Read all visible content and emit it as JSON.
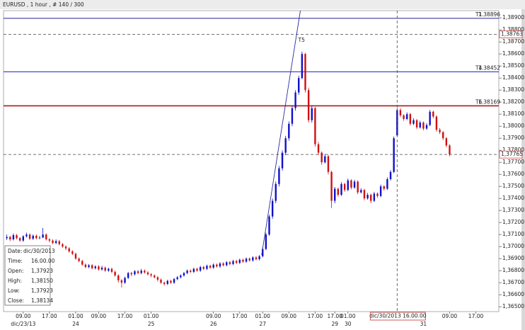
{
  "chart_data": {
    "type": "candlestick",
    "title": "EURUSD , 1 hour , # 140 / 300",
    "xlim": [
      -1,
      150
    ],
    "ylim": [
      1.3646,
      1.3896
    ],
    "yticks": [
      {
        "value": 1.365,
        "label": "1,36500"
      },
      {
        "value": 1.366,
        "label": "1,36600"
      },
      {
        "value": 1.367,
        "label": "1,36700"
      },
      {
        "value": 1.368,
        "label": "1,36800"
      },
      {
        "value": 1.369,
        "label": "1,36900"
      },
      {
        "value": 1.37,
        "label": "1,37000"
      },
      {
        "value": 1.371,
        "label": "1,37100"
      },
      {
        "value": 1.372,
        "label": "1,37200"
      },
      {
        "value": 1.373,
        "label": "1,37300"
      },
      {
        "value": 1.374,
        "label": "1,37400"
      },
      {
        "value": 1.375,
        "label": "1,37500"
      },
      {
        "value": 1.376,
        "label": "1,37600"
      },
      {
        "value": 1.377,
        "label": "1,37700"
      },
      {
        "value": 1.378,
        "label": "1,37800"
      },
      {
        "value": 1.379,
        "label": "1,37900"
      },
      {
        "value": 1.38,
        "label": "1,38000"
      },
      {
        "value": 1.381,
        "label": "1,38100"
      },
      {
        "value": 1.382,
        "label": "1,38200"
      },
      {
        "value": 1.383,
        "label": "1,38300"
      },
      {
        "value": 1.384,
        "label": "1,38400"
      },
      {
        "value": 1.385,
        "label": "1,38500"
      },
      {
        "value": 1.386,
        "label": "1,38600"
      },
      {
        "value": 1.387,
        "label": "1,38700"
      },
      {
        "value": 1.388,
        "label": "1,38800"
      },
      {
        "value": 1.389,
        "label": "1,38900"
      }
    ],
    "xticks": [
      {
        "value": 5,
        "label": "09.00"
      },
      {
        "value": 13,
        "label": "17.00"
      },
      {
        "value": 21,
        "label": "01.00"
      },
      {
        "value": 28,
        "label": "09.00"
      },
      {
        "value": 36,
        "label": "17.00"
      },
      {
        "value": 44,
        "label": "01.00"
      },
      {
        "value": 63,
        "label": "09.00"
      },
      {
        "value": 71,
        "label": "17.00"
      },
      {
        "value": 78,
        "label": "01.00"
      },
      {
        "value": 86,
        "label": "09.00"
      },
      {
        "value": 94,
        "label": "17.00"
      },
      {
        "value": 100,
        "label": "17.00"
      },
      {
        "value": 104,
        "label": "01.00"
      },
      {
        "value": 135,
        "label": "09.00"
      },
      {
        "value": 143,
        "label": "17.00"
      }
    ],
    "date_ticks": [
      {
        "value": 5,
        "label": "dic/23/13"
      },
      {
        "value": 21,
        "label": "24"
      },
      {
        "value": 44,
        "label": "25"
      },
      {
        "value": 63,
        "label": "26"
      },
      {
        "value": 78,
        "label": "27"
      },
      {
        "value": 100,
        "label": "29"
      },
      {
        "value": 104,
        "label": "30"
      },
      {
        "value": 127,
        "label": "31"
      }
    ],
    "up_color": "#1010c8",
    "down_color": "#d01010",
    "ohlc": [
      [
        1.3707,
        1.371,
        1.37055,
        1.3708
      ],
      [
        1.3708,
        1.3709,
        1.37045,
        1.3706
      ],
      [
        1.3706,
        1.3711,
        1.3705,
        1.37095
      ],
      [
        1.37095,
        1.37105,
        1.3706,
        1.3707
      ],
      [
        1.3707,
        1.3708,
        1.3704,
        1.3705
      ],
      [
        1.3705,
        1.37095,
        1.3704,
        1.37085
      ],
      [
        1.37085,
        1.37115,
        1.37075,
        1.371
      ],
      [
        1.371,
        1.3711,
        1.37055,
        1.37065
      ],
      [
        1.37065,
        1.371,
        1.37055,
        1.3709
      ],
      [
        1.3709,
        1.371,
        1.3706,
        1.3707
      ],
      [
        1.3707,
        1.3709,
        1.3706,
        1.37075
      ],
      [
        1.37075,
        1.37155,
        1.3707,
        1.371
      ],
      [
        1.371,
        1.3711,
        1.3705,
        1.3706
      ],
      [
        1.3706,
        1.3707,
        1.37035,
        1.3705
      ],
      [
        1.3705,
        1.3706,
        1.3702,
        1.3703
      ],
      [
        1.3703,
        1.3706,
        1.3702,
        1.37045
      ],
      [
        1.37045,
        1.37055,
        1.3701,
        1.3702
      ],
      [
        1.3702,
        1.3703,
        1.3699,
        1.37
      ],
      [
        1.37,
        1.3701,
        1.3697,
        1.36985
      ],
      [
        1.36985,
        1.36995,
        1.3695,
        1.3696
      ],
      [
        1.3696,
        1.3697,
        1.3693,
        1.3694
      ],
      [
        1.3694,
        1.3695,
        1.3689,
        1.369
      ],
      [
        1.369,
        1.3691,
        1.3687,
        1.3688
      ],
      [
        1.3688,
        1.3689,
        1.3684,
        1.3685
      ],
      [
        1.3685,
        1.3686,
        1.3682,
        1.3683
      ],
      [
        1.3683,
        1.36855,
        1.3682,
        1.36845
      ],
      [
        1.36845,
        1.36855,
        1.3681,
        1.3682
      ],
      [
        1.3682,
        1.36845,
        1.3681,
        1.36835
      ],
      [
        1.36835,
        1.36845,
        1.368,
        1.3681
      ],
      [
        1.3681,
        1.3684,
        1.368,
        1.36825
      ],
      [
        1.36825,
        1.36835,
        1.3679,
        1.368
      ],
      [
        1.368,
        1.36825,
        1.3679,
        1.36815
      ],
      [
        1.36815,
        1.36825,
        1.3678,
        1.3679
      ],
      [
        1.3679,
        1.368,
        1.3675,
        1.3676
      ],
      [
        1.3676,
        1.3677,
        1.367,
        1.3672
      ],
      [
        1.3672,
        1.3673,
        1.3666,
        1.367
      ],
      [
        1.367,
        1.3675,
        1.3669,
        1.3674
      ],
      [
        1.3674,
        1.3679,
        1.3673,
        1.3678
      ],
      [
        1.3678,
        1.3679,
        1.36755,
        1.3677
      ],
      [
        1.3677,
        1.36805,
        1.3676,
        1.36795
      ],
      [
        1.36795,
        1.36805,
        1.3677,
        1.3678
      ],
      [
        1.3678,
        1.36815,
        1.3677,
        1.368
      ],
      [
        1.368,
        1.3681,
        1.36775,
        1.36785
      ],
      [
        1.36785,
        1.36795,
        1.3676,
        1.3677
      ],
      [
        1.3677,
        1.3678,
        1.36745,
        1.3676
      ],
      [
        1.3676,
        1.3677,
        1.36735,
        1.36745
      ],
      [
        1.36745,
        1.36755,
        1.3671,
        1.36725
      ],
      [
        1.36725,
        1.36735,
        1.3669,
        1.367
      ],
      [
        1.367,
        1.3671,
        1.36675,
        1.3669
      ],
      [
        1.3669,
        1.36725,
        1.3668,
        1.36715
      ],
      [
        1.36715,
        1.36725,
        1.3669,
        1.367
      ],
      [
        1.367,
        1.3674,
        1.3669,
        1.3673
      ],
      [
        1.3673,
        1.36755,
        1.3672,
        1.36745
      ],
      [
        1.36745,
        1.3677,
        1.36735,
        1.3676
      ],
      [
        1.3676,
        1.3679,
        1.3675,
        1.3678
      ],
      [
        1.3678,
        1.3681,
        1.3677,
        1.368
      ],
      [
        1.368,
        1.3681,
        1.3678,
        1.3679
      ],
      [
        1.3679,
        1.36825,
        1.3678,
        1.36815
      ],
      [
        1.36815,
        1.36825,
        1.3679,
        1.368
      ],
      [
        1.368,
        1.3684,
        1.3679,
        1.3683
      ],
      [
        1.3683,
        1.3684,
        1.36805,
        1.36815
      ],
      [
        1.36815,
        1.3685,
        1.36805,
        1.3684
      ],
      [
        1.3684,
        1.3685,
        1.36815,
        1.36825
      ],
      [
        1.36825,
        1.3686,
        1.36815,
        1.3685
      ],
      [
        1.3685,
        1.3686,
        1.36825,
        1.36835
      ],
      [
        1.36835,
        1.3687,
        1.36825,
        1.3686
      ],
      [
        1.3686,
        1.3687,
        1.36835,
        1.36845
      ],
      [
        1.36845,
        1.3688,
        1.36835,
        1.3687
      ],
      [
        1.3687,
        1.3688,
        1.36845,
        1.36855
      ],
      [
        1.36855,
        1.3689,
        1.36845,
        1.3688
      ],
      [
        1.3688,
        1.3689,
        1.36855,
        1.36865
      ],
      [
        1.36865,
        1.369,
        1.36855,
        1.3689
      ],
      [
        1.3689,
        1.369,
        1.36865,
        1.36875
      ],
      [
        1.36875,
        1.3691,
        1.36865,
        1.369
      ],
      [
        1.369,
        1.3691,
        1.36875,
        1.36885
      ],
      [
        1.36885,
        1.3692,
        1.36875,
        1.3691
      ],
      [
        1.3691,
        1.3692,
        1.36885,
        1.36895
      ],
      [
        1.36895,
        1.3693,
        1.36885,
        1.3692
      ],
      [
        1.3692,
        1.36995,
        1.3691,
        1.3698
      ],
      [
        1.3698,
        1.37115,
        1.3697,
        1.371
      ],
      [
        1.371,
        1.37265,
        1.3709,
        1.3725
      ],
      [
        1.3725,
        1.374,
        1.3723,
        1.3738
      ],
      [
        1.3738,
        1.3754,
        1.3736,
        1.3752
      ],
      [
        1.3752,
        1.3767,
        1.375,
        1.3765
      ],
      [
        1.3765,
        1.378,
        1.3763,
        1.3778
      ],
      [
        1.3778,
        1.3792,
        1.3776,
        1.379
      ],
      [
        1.379,
        1.3804,
        1.3788,
        1.3802
      ],
      [
        1.3802,
        1.3817,
        1.38,
        1.3815
      ],
      [
        1.3815,
        1.383,
        1.3813,
        1.3828
      ],
      [
        1.3828,
        1.3842,
        1.3826,
        1.384
      ],
      [
        1.384,
        1.3862,
        1.3839,
        1.386
      ],
      [
        1.386,
        1.3861,
        1.3828,
        1.383
      ],
      [
        1.383,
        1.3832,
        1.3803,
        1.3805
      ],
      [
        1.3805,
        1.3817,
        1.3803,
        1.3815
      ],
      [
        1.3815,
        1.3816,
        1.3783,
        1.3785
      ],
      [
        1.3785,
        1.3787,
        1.3776,
        1.3778
      ],
      [
        1.3778,
        1.3779,
        1.3768,
        1.377
      ],
      [
        1.377,
        1.3777,
        1.3769,
        1.3775
      ],
      [
        1.3775,
        1.3776,
        1.376,
        1.3762
      ],
      [
        1.3762,
        1.3763,
        1.3732,
        1.3738
      ],
      [
        1.3738,
        1.37495,
        1.3736,
        1.3748
      ],
      [
        1.3748,
        1.3749,
        1.37415,
        1.3743
      ],
      [
        1.3743,
        1.37535,
        1.3742,
        1.3752
      ],
      [
        1.3752,
        1.3753,
        1.37455,
        1.3747
      ],
      [
        1.3747,
        1.37565,
        1.3746,
        1.3755
      ],
      [
        1.3755,
        1.3756,
        1.37475,
        1.3749
      ],
      [
        1.3749,
        1.37555,
        1.3748,
        1.3754
      ],
      [
        1.3754,
        1.3755,
        1.37435,
        1.3745
      ],
      [
        1.3745,
        1.37485,
        1.3744,
        1.3747
      ],
      [
        1.3747,
        1.3748,
        1.37385,
        1.374
      ],
      [
        1.374,
        1.37445,
        1.3739,
        1.3743
      ],
      [
        1.3743,
        1.3744,
        1.3736,
        1.3738
      ],
      [
        1.3738,
        1.37455,
        1.3737,
        1.3744
      ],
      [
        1.3744,
        1.3745,
        1.37405,
        1.3742
      ],
      [
        1.3742,
        1.37515,
        1.3741,
        1.375
      ],
      [
        1.375,
        1.3751,
        1.37465,
        1.3748
      ],
      [
        1.3748,
        1.37575,
        1.3747,
        1.3756
      ],
      [
        1.3756,
        1.37635,
        1.3755,
        1.3762
      ],
      [
        1.3762,
        1.37915,
        1.3761,
        1.379
      ],
      [
        1.37923,
        1.3815,
        1.37923,
        1.38134
      ],
      [
        1.38134,
        1.3815,
        1.38075,
        1.3809
      ],
      [
        1.3809,
        1.381,
        1.38045,
        1.3806
      ],
      [
        1.3806,
        1.38115,
        1.3805,
        1.381
      ],
      [
        1.381,
        1.3811,
        1.38005,
        1.3802
      ],
      [
        1.3802,
        1.38065,
        1.3801,
        1.3805
      ],
      [
        1.3805,
        1.3806,
        1.37975,
        1.3799
      ],
      [
        1.3799,
        1.38045,
        1.3798,
        1.3803
      ],
      [
        1.3803,
        1.3804,
        1.37965,
        1.3798
      ],
      [
        1.3798,
        1.38025,
        1.3797,
        1.3801
      ],
      [
        1.3801,
        1.38135,
        1.38,
        1.3812
      ],
      [
        1.3812,
        1.3813,
        1.38065,
        1.3808
      ],
      [
        1.3808,
        1.3809,
        1.37955,
        1.3797
      ],
      [
        1.3797,
        1.37985,
        1.37935,
        1.3795
      ],
      [
        1.3795,
        1.3796,
        1.37885,
        1.379
      ],
      [
        1.379,
        1.3791,
        1.37825,
        1.3784
      ],
      [
        1.3784,
        1.3785,
        1.3775,
        1.37765
      ]
    ],
    "hlines": [
      {
        "label": "T1",
        "value": 1.38896,
        "color": "#2020a0"
      },
      {
        "label": "T4",
        "value": 1.38452,
        "color": "#2020c0"
      },
      {
        "label": "T6",
        "value": 1.38169,
        "color": "#b01818"
      }
    ],
    "price_markers": [
      {
        "value": 1.38763,
        "label": "1,38763"
      },
      {
        "value": 1.37765,
        "label": "1,37765"
      }
    ],
    "trendline": {
      "label": "T5",
      "x": [
        77.7,
        89.5
      ],
      "y": [
        1.3693,
        1.3896
      ],
      "color": "#2a2aa0"
    },
    "cursor": {
      "x": 119,
      "label": "dic/30/2013 16.00.00"
    },
    "info": [
      {
        "label": "Date:",
        "value": "dic/30/2013"
      },
      {
        "label": "Time:",
        "value": "16.00.00"
      },
      {
        "label": "Open:",
        "value": "1,37923"
      },
      {
        "label": "High:",
        "value": "1,38150"
      },
      {
        "label": "Low:",
        "value": "1,37923"
      },
      {
        "label": "Close:",
        "value": "1,38134"
      }
    ]
  }
}
